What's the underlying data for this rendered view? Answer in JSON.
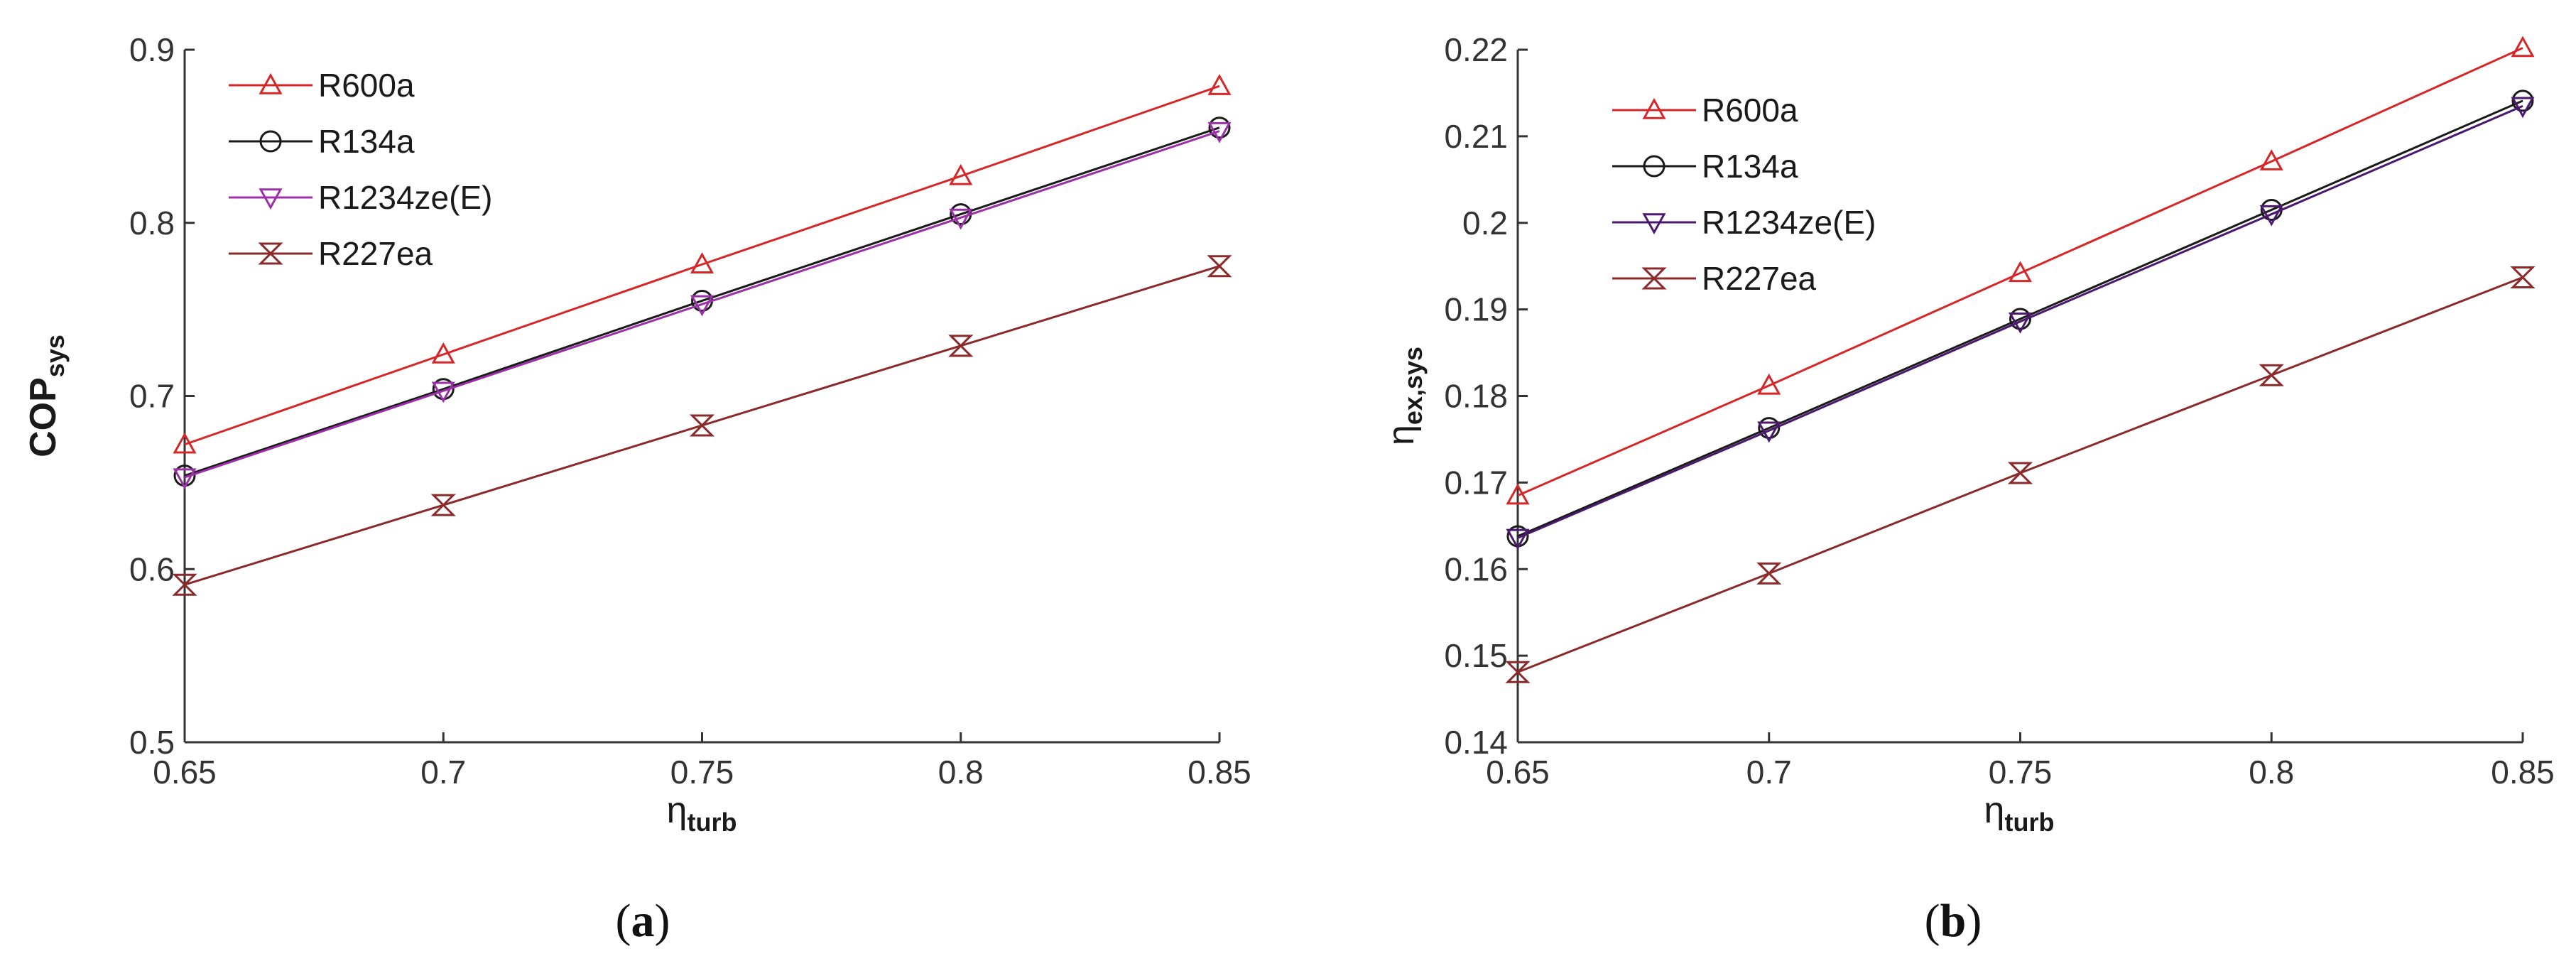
{
  "chart_data": [
    {
      "type": "line",
      "panel_label": "a",
      "caption_open": "(",
      "caption_close": ")",
      "title": "",
      "xlabel_main": "η",
      "xlabel_sub": "turb",
      "ylabel_main": "COP",
      "ylabel_sub": "sys",
      "xlim": [
        0.65,
        0.85
      ],
      "ylim": [
        0.5,
        0.9
      ],
      "xticks": [
        0.65,
        0.7,
        0.75,
        0.8,
        0.85
      ],
      "xtick_labels": [
        "0.65",
        "0.7",
        "0.75",
        "0.8",
        "0.85"
      ],
      "yticks": [
        0.5,
        0.6,
        0.7,
        0.8,
        0.9
      ],
      "ytick_labels": [
        "0.5",
        "0.6",
        "0.7",
        "0.8",
        "0.9"
      ],
      "legend_position": "top-left",
      "x": [
        0.65,
        0.7,
        0.75,
        0.8,
        0.85
      ],
      "series": [
        {
          "name": "R600a",
          "color": "#d62728",
          "marker": "triangle-up",
          "values": [
            0.672,
            0.724,
            0.776,
            0.827,
            0.879
          ]
        },
        {
          "name": "R134a",
          "color": "#1a1a1a",
          "marker": "circle",
          "values": [
            0.654,
            0.704,
            0.755,
            0.805,
            0.855
          ]
        },
        {
          "name": "R1234ze(E)",
          "color": "#9b30a8",
          "marker": "triangle-down",
          "values": [
            0.653,
            0.703,
            0.753,
            0.803,
            0.853
          ]
        },
        {
          "name": "R227ea",
          "color": "#8b2a2a",
          "marker": "bowtie",
          "values": [
            0.591,
            0.637,
            0.683,
            0.729,
            0.775
          ]
        }
      ]
    },
    {
      "type": "line",
      "panel_label": "b",
      "caption_open": "(",
      "caption_close": ")",
      "title": "",
      "xlabel_main": "η",
      "xlabel_sub": "turb",
      "ylabel_main": "η",
      "ylabel_sub": "ex,sys",
      "xlim": [
        0.65,
        0.85
      ],
      "ylim": [
        0.14,
        0.22
      ],
      "xticks": [
        0.65,
        0.7,
        0.75,
        0.8,
        0.85
      ],
      "xtick_labels": [
        "0.65",
        "0.7",
        "0.75",
        "0.8",
        "0.85"
      ],
      "yticks": [
        0.14,
        0.15,
        0.16,
        0.17,
        0.18,
        0.19,
        0.2,
        0.21,
        0.22
      ],
      "ytick_labels": [
        "0.14",
        "0.15",
        "0.16",
        "0.17",
        "0.18",
        "0.19",
        "0.2",
        "0.21",
        "0.22"
      ],
      "legend_position": "top-left",
      "x": [
        0.65,
        0.7,
        0.75,
        0.8,
        0.85
      ],
      "series": [
        {
          "name": "R600a",
          "color": "#d62728",
          "marker": "triangle-up",
          "values": [
            0.1685,
            0.1812,
            0.1942,
            0.2071,
            0.2202
          ]
        },
        {
          "name": "R134a",
          "color": "#1a1a1a",
          "marker": "circle",
          "values": [
            0.1638,
            0.1763,
            0.1889,
            0.2015,
            0.2141
          ]
        },
        {
          "name": "R1234ze(E)",
          "color": "#4b1a6e",
          "marker": "triangle-down",
          "values": [
            0.1636,
            0.176,
            0.1886,
            0.201,
            0.2135
          ]
        },
        {
          "name": "R227ea",
          "color": "#8b2a2a",
          "marker": "bowtie",
          "values": [
            0.1481,
            0.1595,
            0.1711,
            0.1824,
            0.1937
          ]
        }
      ]
    }
  ]
}
